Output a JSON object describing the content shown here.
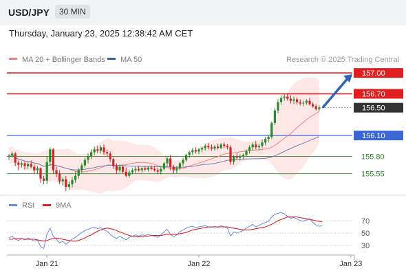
{
  "header": {
    "symbol": "USD/JPY",
    "timeframe": "30 MIN"
  },
  "timestamp": "Thursday, January 23, 2025 12:38:42 AM CET",
  "watermark": "Research © 2025 Trading Central",
  "legend_main": [
    {
      "label": "MA 20 + Bollinger Bands",
      "color": "#f08080"
    },
    {
      "label": "MA 50",
      "color": "#3a5f9e"
    }
  ],
  "legend_rsi": [
    {
      "label": "RSI",
      "color": "#6b8be0"
    },
    {
      "label": "9MA",
      "color": "#e02020"
    }
  ],
  "colors": {
    "up": "#2a8a2a",
    "down": "#c62828",
    "resistance": "#e02020",
    "pivot": "#5577dd",
    "support": "#2a8a2a",
    "arrow": "#2f63b5",
    "band": "#fde3e3",
    "last": "#333333"
  },
  "chart_data": [
    {
      "type": "candlestick",
      "y_range": [
        155.28,
        157.1
      ],
      "x_ticks": [
        {
          "label": "Jan 21",
          "index": 12
        },
        {
          "label": "Jan 22",
          "index": 60
        },
        {
          "label": "Jan 23",
          "index": 108
        }
      ],
      "levels": [
        {
          "value": 157.0,
          "label": "157.00",
          "kind": "resistance"
        },
        {
          "value": 156.7,
          "label": "156.70",
          "kind": "resistance"
        },
        {
          "value": 156.5,
          "label": "156.50",
          "kind": "last"
        },
        {
          "value": 156.1,
          "label": "156.10",
          "kind": "pivot"
        },
        {
          "value": 155.8,
          "label": "155.80",
          "kind": "support"
        },
        {
          "value": 155.55,
          "label": "155.55",
          "kind": "support"
        }
      ],
      "projection": {
        "from": 156.5,
        "to": 157.0
      },
      "candles": [
        [
          155.8,
          155.83,
          155.75,
          155.81
        ],
        [
          155.81,
          155.87,
          155.78,
          155.84
        ],
        [
          155.84,
          155.86,
          155.66,
          155.71
        ],
        [
          155.71,
          155.74,
          155.6,
          155.68
        ],
        [
          155.68,
          155.73,
          155.64,
          155.7
        ],
        [
          155.7,
          155.72,
          155.61,
          155.66
        ],
        [
          155.66,
          155.71,
          155.62,
          155.69
        ],
        [
          155.69,
          155.74,
          155.63,
          155.65
        ],
        [
          155.65,
          155.68,
          155.55,
          155.6
        ],
        [
          155.6,
          155.66,
          155.55,
          155.63
        ],
        [
          155.63,
          155.64,
          155.42,
          155.48
        ],
        [
          155.48,
          155.52,
          155.4,
          155.45
        ],
        [
          155.45,
          155.8,
          155.4,
          155.72
        ],
        [
          155.72,
          155.93,
          155.66,
          155.9
        ],
        [
          155.9,
          155.92,
          155.55,
          155.6
        ],
        [
          155.6,
          155.65,
          155.5,
          155.55
        ],
        [
          155.55,
          155.6,
          155.4,
          155.44
        ],
        [
          155.44,
          155.5,
          155.38,
          155.47
        ],
        [
          155.47,
          155.52,
          155.3,
          155.36
        ],
        [
          155.36,
          155.44,
          155.32,
          155.4
        ],
        [
          155.4,
          155.5,
          155.35,
          155.46
        ],
        [
          155.46,
          155.58,
          155.42,
          155.52
        ],
        [
          155.52,
          155.63,
          155.48,
          155.6
        ],
        [
          155.6,
          155.7,
          155.56,
          155.67
        ],
        [
          155.67,
          155.78,
          155.64,
          155.75
        ],
        [
          155.75,
          155.84,
          155.7,
          155.8
        ],
        [
          155.8,
          155.9,
          155.76,
          155.86
        ],
        [
          155.86,
          155.94,
          155.82,
          155.9
        ],
        [
          155.9,
          155.95,
          155.85,
          155.88
        ],
        [
          155.88,
          155.96,
          155.84,
          155.93
        ],
        [
          155.93,
          155.97,
          155.82,
          155.86
        ],
        [
          155.86,
          155.9,
          155.8,
          155.84
        ],
        [
          155.84,
          155.87,
          155.72,
          155.76
        ],
        [
          155.76,
          155.78,
          155.62,
          155.66
        ],
        [
          155.66,
          155.7,
          155.55,
          155.6
        ],
        [
          155.6,
          155.68,
          155.57,
          155.65
        ],
        [
          155.65,
          155.67,
          155.55,
          155.58
        ],
        [
          155.58,
          155.64,
          155.5,
          155.52
        ],
        [
          155.52,
          155.6,
          155.49,
          155.57
        ],
        [
          155.57,
          155.63,
          155.54,
          155.6
        ],
        [
          155.6,
          155.65,
          155.56,
          155.62
        ],
        [
          155.62,
          155.66,
          155.58,
          155.6
        ],
        [
          155.6,
          155.64,
          155.57,
          155.63
        ],
        [
          155.63,
          155.66,
          155.59,
          155.61
        ],
        [
          155.61,
          155.65,
          155.58,
          155.64
        ],
        [
          155.64,
          155.67,
          155.6,
          155.62
        ],
        [
          155.62,
          155.66,
          155.58,
          155.6
        ],
        [
          155.6,
          155.64,
          155.55,
          155.58
        ],
        [
          155.58,
          155.65,
          155.54,
          155.62
        ],
        [
          155.62,
          155.72,
          155.6,
          155.7
        ],
        [
          155.7,
          155.8,
          155.66,
          155.77
        ],
        [
          155.77,
          155.82,
          155.6,
          155.65
        ],
        [
          155.65,
          155.68,
          155.55,
          155.6
        ],
        [
          155.6,
          155.66,
          155.56,
          155.63
        ],
        [
          155.63,
          155.72,
          155.6,
          155.7
        ],
        [
          155.7,
          155.78,
          155.66,
          155.75
        ],
        [
          155.75,
          155.84,
          155.72,
          155.82
        ],
        [
          155.82,
          155.88,
          155.78,
          155.86
        ],
        [
          155.86,
          155.92,
          155.82,
          155.89
        ],
        [
          155.89,
          155.93,
          155.84,
          155.87
        ],
        [
          155.87,
          155.92,
          155.83,
          155.9
        ],
        [
          155.9,
          155.94,
          155.86,
          155.92
        ],
        [
          155.92,
          155.98,
          155.88,
          155.95
        ],
        [
          155.95,
          155.99,
          155.9,
          155.93
        ],
        [
          155.93,
          155.97,
          155.88,
          155.91
        ],
        [
          155.91,
          155.96,
          155.88,
          155.94
        ],
        [
          155.94,
          155.98,
          155.9,
          155.92
        ],
        [
          155.92,
          155.99,
          155.9,
          155.97
        ],
        [
          155.97,
          156.0,
          155.92,
          155.95
        ],
        [
          155.95,
          155.98,
          155.9,
          155.93
        ],
        [
          155.93,
          155.96,
          155.68,
          155.72
        ],
        [
          155.72,
          155.82,
          155.68,
          155.8
        ],
        [
          155.8,
          155.84,
          155.75,
          155.78
        ],
        [
          155.78,
          155.83,
          155.74,
          155.8
        ],
        [
          155.8,
          155.84,
          155.76,
          155.82
        ],
        [
          155.82,
          155.9,
          155.8,
          155.88
        ],
        [
          155.88,
          155.96,
          155.84,
          155.93
        ],
        [
          155.93,
          156.0,
          155.88,
          155.97
        ],
        [
          155.97,
          156.02,
          155.9,
          155.93
        ],
        [
          155.93,
          155.98,
          155.88,
          155.95
        ],
        [
          155.95,
          156.04,
          155.92,
          156.0
        ],
        [
          156.0,
          156.08,
          155.96,
          156.05
        ],
        [
          156.05,
          156.1,
          156.0,
          156.08
        ],
        [
          156.08,
          156.3,
          156.05,
          156.28
        ],
        [
          156.28,
          156.5,
          156.25,
          156.46
        ],
        [
          156.46,
          156.62,
          156.42,
          156.58
        ],
        [
          156.58,
          156.68,
          156.54,
          156.64
        ],
        [
          156.64,
          156.7,
          156.6,
          156.66
        ],
        [
          156.66,
          156.7,
          156.6,
          156.63
        ],
        [
          156.63,
          156.68,
          156.56,
          156.6
        ],
        [
          156.6,
          156.66,
          156.55,
          156.62
        ],
        [
          156.62,
          156.65,
          156.55,
          156.58
        ],
        [
          156.58,
          156.62,
          156.53,
          156.56
        ],
        [
          156.56,
          156.6,
          156.52,
          156.57
        ],
        [
          156.57,
          156.62,
          156.54,
          156.6
        ],
        [
          156.6,
          156.64,
          156.53,
          156.55
        ],
        [
          156.55,
          156.58,
          156.5,
          156.52
        ],
        [
          156.52,
          156.55,
          156.46,
          156.48
        ],
        [
          156.48,
          156.54,
          156.45,
          156.5
        ]
      ]
    },
    {
      "type": "line",
      "y_ticks": [
        70,
        50,
        30
      ],
      "y_range": [
        20,
        80
      ],
      "series": [
        {
          "name": "RSI",
          "values": [
            42,
            45,
            40,
            38,
            41,
            39,
            42,
            40,
            37,
            39,
            28,
            25,
            48,
            58,
            45,
            40,
            34,
            37,
            32,
            36,
            40,
            43,
            47,
            51,
            54,
            56,
            58,
            60,
            57,
            59,
            55,
            53,
            48,
            44,
            41,
            45,
            42,
            39,
            43,
            45,
            47,
            45,
            47,
            46,
            48,
            46,
            45,
            43,
            47,
            52,
            56,
            48,
            44,
            47,
            52,
            55,
            58,
            60,
            61,
            59,
            60,
            61,
            62,
            60,
            59,
            61,
            59,
            62,
            60,
            58,
            45,
            52,
            50,
            52,
            54,
            58,
            61,
            64,
            60,
            62,
            65,
            67,
            69,
            76,
            80,
            82,
            83,
            81,
            77,
            74,
            75,
            73,
            70,
            69,
            71,
            73,
            67,
            63,
            61,
            62
          ]
        },
        {
          "name": "9MA",
          "values": [
            40,
            40,
            41,
            41,
            41,
            40,
            40,
            40,
            40,
            39,
            38,
            37,
            38,
            40,
            41,
            42,
            41,
            40,
            39,
            38,
            37,
            37,
            38,
            40,
            42,
            45,
            47,
            50,
            53,
            55,
            57,
            58,
            57,
            56,
            54,
            52,
            50,
            48,
            46,
            45,
            44,
            44,
            44,
            45,
            45,
            46,
            46,
            46,
            46,
            47,
            48,
            48,
            48,
            48,
            49,
            50,
            51,
            53,
            55,
            56,
            57,
            58,
            59,
            60,
            60,
            60,
            60,
            60,
            60,
            60,
            59,
            58,
            57,
            56,
            55,
            55,
            55,
            56,
            57,
            58,
            59,
            60,
            62,
            64,
            67,
            70,
            72,
            74,
            76,
            76,
            76,
            76,
            75,
            74,
            73,
            72,
            71,
            70,
            69,
            68
          ]
        }
      ]
    }
  ]
}
